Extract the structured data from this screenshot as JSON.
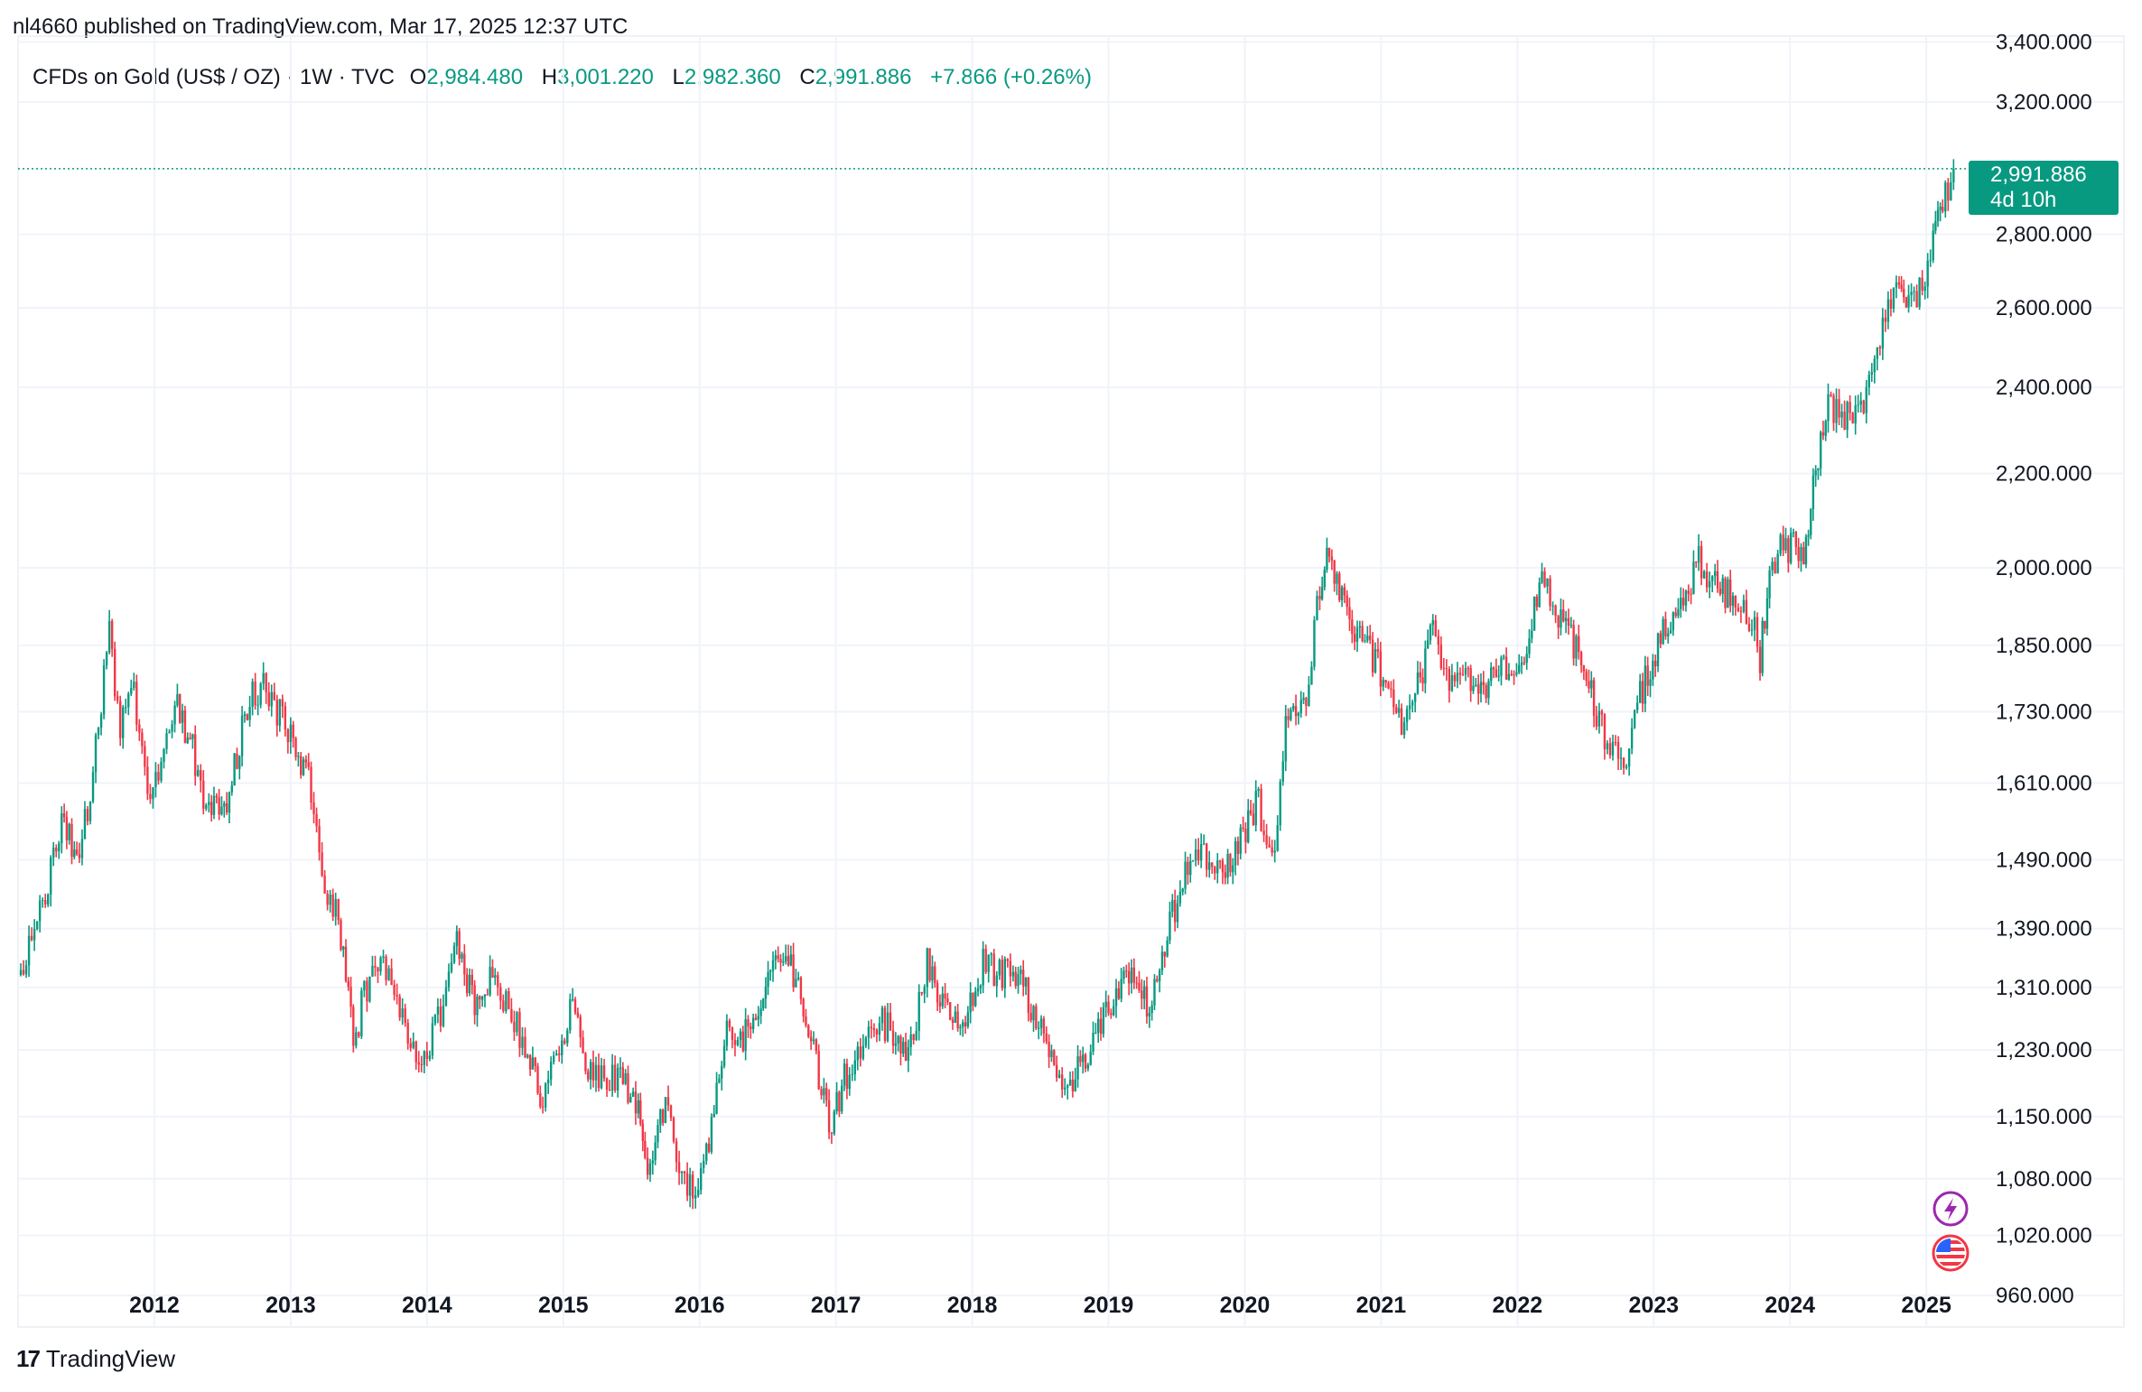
{
  "header": {
    "publisher": "nl4660 published on TradingView.com, Mar 17, 2025 12:37 UTC"
  },
  "legend": {
    "symbol": "CFDs on Gold (US$ / OZ) · 1W · TVC",
    "open_label": "O",
    "open": "2,984.480",
    "high_label": "H",
    "high": "3,001.220",
    "low_label": "L",
    "low": "2,982.360",
    "close_label": "C",
    "close": "2,991.886",
    "change": "+7.866 (+0.26%)"
  },
  "colors": {
    "up": "#089981",
    "down": "#f23645",
    "grid": "#f0f3fa",
    "text": "#131722",
    "event_purple": "#9c27b0"
  },
  "icons": {
    "event_1": "lightning-icon",
    "event_2": "us-flag-icon",
    "brand": "tradingview-logo-icon"
  },
  "brand": {
    "logo": "17",
    "name": "TradingView"
  },
  "chart_data": {
    "type": "candlestick",
    "title": "CFDs on Gold (US$ / OZ) · 1W · TVC",
    "scale": "log",
    "ylim": [
      930,
      3420
    ],
    "xlim": [
      2011.0,
      2025.35
    ],
    "y_ticks": [
      {
        "value": 3400,
        "label": "3,400.000"
      },
      {
        "value": 3200,
        "label": "3,200.000"
      },
      {
        "value": 2800,
        "label": "2,800.000"
      },
      {
        "value": 2600,
        "label": "2,600.000"
      },
      {
        "value": 2400,
        "label": "2,400.000"
      },
      {
        "value": 2200,
        "label": "2,200.000"
      },
      {
        "value": 2000,
        "label": "2,000.000"
      },
      {
        "value": 1850,
        "label": "1,850.000"
      },
      {
        "value": 1730,
        "label": "1,730.000"
      },
      {
        "value": 1610,
        "label": "1,610.000"
      },
      {
        "value": 1490,
        "label": "1,490.000"
      },
      {
        "value": 1390,
        "label": "1,390.000"
      },
      {
        "value": 1310,
        "label": "1,310.000"
      },
      {
        "value": 1230,
        "label": "1,230.000"
      },
      {
        "value": 1150,
        "label": "1,150.000"
      },
      {
        "value": 1080,
        "label": "1,080.000"
      },
      {
        "value": 1020,
        "label": "1,020.000"
      },
      {
        "value": 960,
        "label": "960.000"
      }
    ],
    "x_ticks": [
      "2012",
      "2013",
      "2014",
      "2015",
      "2016",
      "2017",
      "2018",
      "2019",
      "2020",
      "2021",
      "2022",
      "2023",
      "2024",
      "2025"
    ],
    "last_price": {
      "value": 2991.886,
      "label": "2,991.886",
      "countdown": "4d 10h"
    },
    "anchors": [
      [
        2011.02,
        1330
      ],
      [
        2011.2,
        1440
      ],
      [
        2011.32,
        1540
      ],
      [
        2011.45,
        1500
      ],
      [
        2011.55,
        1620
      ],
      [
        2011.67,
        1880
      ],
      [
        2011.75,
        1700
      ],
      [
        2011.85,
        1760
      ],
      [
        2011.97,
        1570
      ],
      [
        2012.15,
        1760
      ],
      [
        2012.3,
        1650
      ],
      [
        2012.4,
        1560
      ],
      [
        2012.55,
        1590
      ],
      [
        2012.7,
        1760
      ],
      [
        2012.82,
        1780
      ],
      [
        2013.0,
        1680
      ],
      [
        2013.15,
        1600
      ],
      [
        2013.27,
        1440
      ],
      [
        2013.35,
        1400
      ],
      [
        2013.46,
        1240
      ],
      [
        2013.62,
        1360
      ],
      [
        2013.72,
        1320
      ],
      [
        2013.96,
        1210
      ],
      [
        2014.12,
        1290
      ],
      [
        2014.2,
        1380
      ],
      [
        2014.35,
        1290
      ],
      [
        2014.5,
        1330
      ],
      [
        2014.72,
        1230
      ],
      [
        2014.85,
        1170
      ],
      [
        2014.97,
        1220
      ],
      [
        2015.05,
        1290
      ],
      [
        2015.22,
        1190
      ],
      [
        2015.4,
        1200
      ],
      [
        2015.55,
        1160
      ],
      [
        2015.6,
        1090
      ],
      [
        2015.75,
        1160
      ],
      [
        2015.85,
        1090
      ],
      [
        2015.95,
        1060
      ],
      [
        2016.05,
        1110
      ],
      [
        2016.2,
        1250
      ],
      [
        2016.3,
        1240
      ],
      [
        2016.45,
        1290
      ],
      [
        2016.52,
        1350
      ],
      [
        2016.67,
        1340
      ],
      [
        2016.78,
        1270
      ],
      [
        2016.95,
        1140
      ],
      [
        2017.1,
        1210
      ],
      [
        2017.28,
        1270
      ],
      [
        2017.42,
        1250
      ],
      [
        2017.55,
        1230
      ],
      [
        2017.67,
        1340
      ],
      [
        2017.82,
        1280
      ],
      [
        2017.95,
        1260
      ],
      [
        2018.08,
        1340
      ],
      [
        2018.2,
        1330
      ],
      [
        2018.3,
        1340
      ],
      [
        2018.45,
        1280
      ],
      [
        2018.62,
        1200
      ],
      [
        2018.7,
        1180
      ],
      [
        2018.85,
        1230
      ],
      [
        2019.0,
        1290
      ],
      [
        2019.15,
        1320
      ],
      [
        2019.3,
        1280
      ],
      [
        2019.45,
        1400
      ],
      [
        2019.62,
        1510
      ],
      [
        2019.8,
        1470
      ],
      [
        2019.95,
        1510
      ],
      [
        2020.1,
        1580
      ],
      [
        2020.2,
        1480
      ],
      [
        2020.3,
        1700
      ],
      [
        2020.45,
        1740
      ],
      [
        2020.55,
        1960
      ],
      [
        2020.62,
        2030
      ],
      [
        2020.75,
        1900
      ],
      [
        2020.9,
        1850
      ],
      [
        2021.15,
        1720
      ],
      [
        2021.25,
        1760
      ],
      [
        2021.38,
        1880
      ],
      [
        2021.5,
        1790
      ],
      [
        2021.62,
        1800
      ],
      [
        2021.77,
        1780
      ],
      [
        2021.9,
        1800
      ],
      [
        2022.05,
        1830
      ],
      [
        2022.18,
        2000
      ],
      [
        2022.3,
        1900
      ],
      [
        2022.45,
        1840
      ],
      [
        2022.58,
        1730
      ],
      [
        2022.7,
        1650
      ],
      [
        2022.82,
        1650
      ],
      [
        2022.9,
        1760
      ],
      [
        2023.05,
        1870
      ],
      [
        2023.18,
        1920
      ],
      [
        2023.33,
        2020
      ],
      [
        2023.45,
        1960
      ],
      [
        2023.6,
        1950
      ],
      [
        2023.72,
        1900
      ],
      [
        2023.78,
        1830
      ],
      [
        2023.85,
        1990
      ],
      [
        2023.95,
        2050
      ],
      [
        2024.1,
        2030
      ],
      [
        2024.17,
        2160
      ],
      [
        2024.28,
        2360
      ],
      [
        2024.4,
        2330
      ],
      [
        2024.5,
        2320
      ],
      [
        2024.6,
        2420
      ],
      [
        2024.7,
        2560
      ],
      [
        2024.8,
        2700
      ],
      [
        2024.87,
        2600
      ],
      [
        2024.95,
        2640
      ],
      [
        2025.05,
        2780
      ],
      [
        2025.12,
        2900
      ],
      [
        2025.2,
        2991.886
      ]
    ],
    "series_note": "weekly OHLC candles interpolated between the anchor closes [year, price]"
  }
}
